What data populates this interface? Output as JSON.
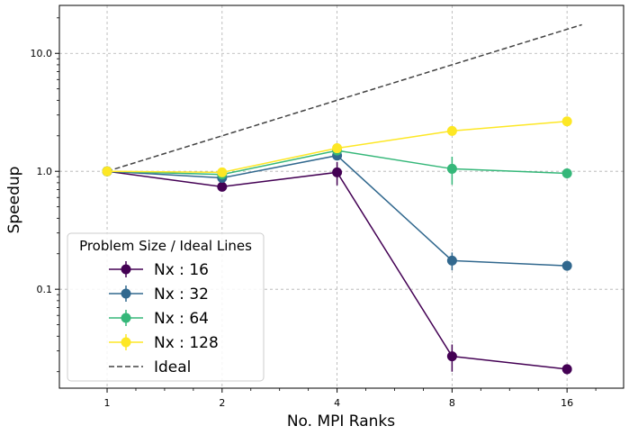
{
  "chart_data": {
    "type": "line",
    "xscale": "log2",
    "yscale": "log",
    "x": [
      1,
      2,
      4,
      8,
      16
    ],
    "xticklabels": [
      "1",
      "2",
      "4",
      "8",
      "16"
    ],
    "yticks": [
      0.1,
      1.0,
      10.0
    ],
    "yticklabels": [
      "0.1",
      "1.0",
      "10.0"
    ],
    "xlim": [
      0.75,
      22.5
    ],
    "ylim": [
      0.0145,
      25.5
    ],
    "xlabel": "No. MPI Ranks",
    "ylabel": "Speedup",
    "grid": true,
    "legend": {
      "title": "Problem Size / Ideal Lines",
      "position": "lower-left"
    },
    "series": [
      {
        "name": "Nx : 16",
        "color": "#440154",
        "values": [
          1.0,
          0.74,
          0.98,
          0.027,
          0.021
        ],
        "errors": [
          0.02,
          0.05,
          0.22,
          0.007,
          0.002
        ]
      },
      {
        "name": "Nx : 32",
        "color": "#31688e",
        "values": [
          1.0,
          0.88,
          1.36,
          0.175,
          0.158
        ],
        "errors": [
          0.02,
          0.06,
          0.12,
          0.03,
          0.008
        ]
      },
      {
        "name": "Nx : 64",
        "color": "#35b779",
        "values": [
          1.0,
          0.94,
          1.5,
          1.05,
          0.96
        ],
        "errors": [
          0.02,
          0.05,
          0.12,
          0.28,
          0.04
        ]
      },
      {
        "name": "Nx : 128",
        "color": "#fde725",
        "values": [
          1.0,
          0.98,
          1.57,
          2.2,
          2.65
        ],
        "errors": [
          0.02,
          0.04,
          0.08,
          0.15,
          0.1
        ]
      }
    ],
    "ideal": {
      "name": "Ideal",
      "color": "#444444",
      "style": "dashed",
      "x": [
        1,
        17.5
      ],
      "values": [
        1.0,
        17.5
      ]
    }
  }
}
